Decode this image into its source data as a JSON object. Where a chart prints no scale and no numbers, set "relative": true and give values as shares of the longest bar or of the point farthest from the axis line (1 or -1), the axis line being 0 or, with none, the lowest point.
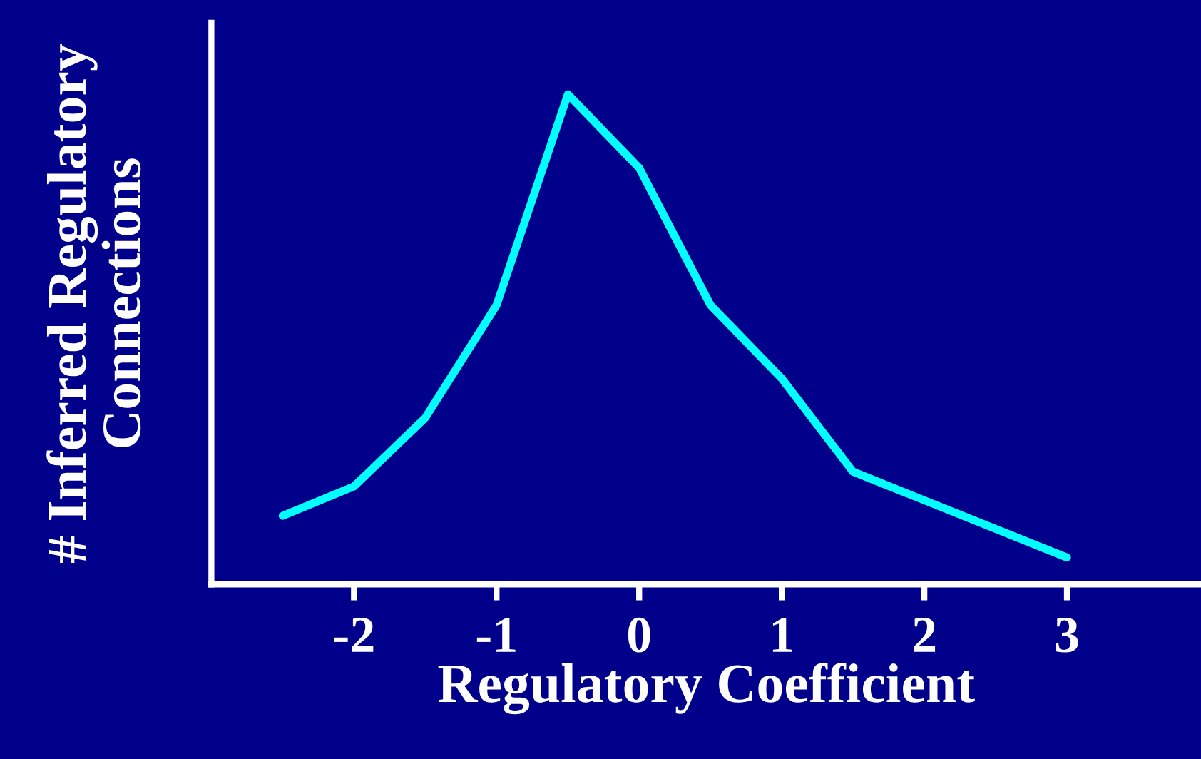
{
  "chart_data": {
    "type": "line",
    "relative": true,
    "xlabel": "Regulatory Coefficient",
    "ylabel": "# Inferred Regulatory\nConnections",
    "x": [
      -2.5,
      -2,
      -1.5,
      -1,
      -0.5,
      0,
      0.5,
      1,
      1.5,
      3
    ],
    "series": [
      {
        "color": "#00ffff",
        "values": [
          0.14,
          0.2,
          0.34,
          0.57,
          1,
          0.85,
          0.57,
          0.42,
          0.23,
          0.055
        ]
      }
    ],
    "xlim": [
      -3,
      3.94
    ],
    "xticks": [
      -2,
      -1,
      0,
      1,
      2,
      3
    ],
    "grid": false,
    "marker": "none",
    "line_style": "solid"
  }
}
